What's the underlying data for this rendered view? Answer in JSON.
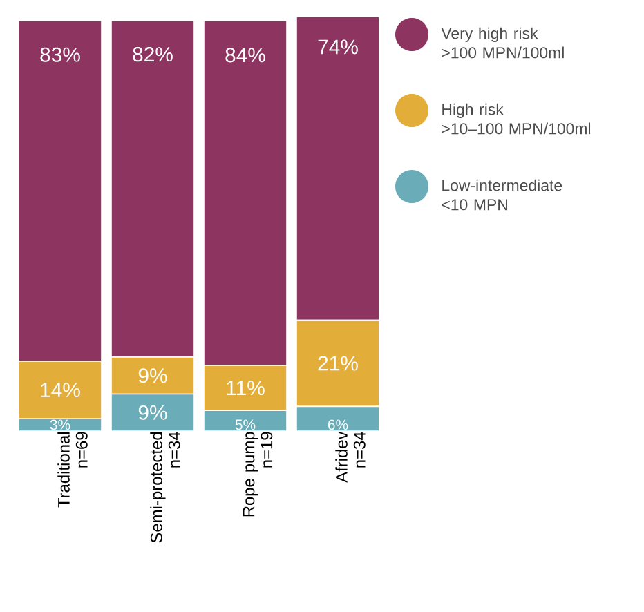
{
  "chart_data": {
    "type": "bar",
    "stacked": true,
    "categories": [
      "Traditional\nn=69",
      "Semi-protected\nn=34",
      "Rope pump\nn=19",
      "Afridev\nn=34"
    ],
    "series": [
      {
        "name": "Low-intermediate\n<10 MPN",
        "color": "#6aacb8",
        "values": [
          3,
          9,
          5,
          6
        ],
        "value_labels": [
          "3%",
          "9%",
          "5%",
          "6%"
        ]
      },
      {
        "name": "High risk\n>10–100 MPN/100ml",
        "color": "#e3ad3a",
        "values": [
          14,
          9,
          11,
          21
        ],
        "value_labels": [
          "14%",
          "9%",
          "11%",
          "21%"
        ]
      },
      {
        "name": "Very high risk\n>100 MPN/100ml",
        "color": "#8d3460",
        "values": [
          83,
          82,
          84,
          74
        ],
        "value_labels": [
          "83%",
          "82%",
          "84%",
          "74%"
        ]
      }
    ],
    "tick_labels": "x",
    "legend": "top right"
  }
}
